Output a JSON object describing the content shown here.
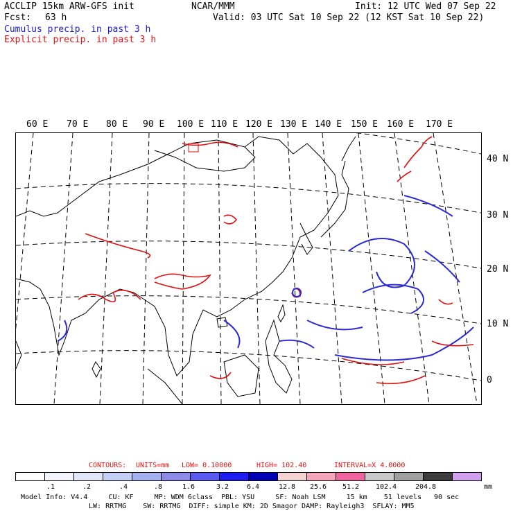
{
  "header": {
    "title_left": "ACCLIP 15km ARW-GFS init",
    "center": "NCAR/MMM",
    "init": "Init: 12 UTC Wed 07 Sep 22",
    "fcst_label": "Fcst:",
    "fcst_value": "63 h",
    "valid": "Valid: 03 UTC Sat 10 Sep 22 (12 KST Sat 10 Sep 22)",
    "legend_cumulus": "Cumulus precip. in past 3 h",
    "legend_explicit": "Explicit precip. in past 3 h"
  },
  "map": {
    "lon_labels": [
      "60 E",
      "70 E",
      "80 E",
      "90 E",
      "100 E",
      "110 E",
      "120 E",
      "130 E",
      "140 E",
      "150 E",
      "160 E",
      "170 E"
    ],
    "lat_labels": [
      "40 N",
      "30 N",
      "20 N",
      "10 N",
      "0"
    ],
    "colors": {
      "cumulus": "#2a2ad6",
      "explicit": "#e01010",
      "coast": "#000000"
    }
  },
  "contours": {
    "label": "CONTOURS:",
    "units": "UNITS=mm",
    "low": "LOW= 0.10000",
    "high": "HIGH= 102.40",
    "interval": "INTERVAL=X 4.0000"
  },
  "colorbar": {
    "colors": [
      "#ffffff",
      "#f4f4ff",
      "#e1e6fa",
      "#c4cff5",
      "#a5b0f0",
      "#8c8ce8",
      "#5a5af0",
      "#1e1ef0",
      "#0000b4",
      "#f5d2d2",
      "#f5a5bb",
      "#f064a0",
      "#c8c8c8",
      "#a0a0a0",
      "#3c3c3c",
      "#d2a0f0"
    ],
    "ticks": [
      ".1",
      ".2",
      ".4",
      ".8",
      "1.6",
      "3.2",
      "6.4",
      "12.8",
      "25.6",
      "51.2",
      "102.4",
      "204.8"
    ],
    "unit": "mm"
  },
  "model_info": {
    "line1": "Model Info: V4.4     CU: KF     MP: WDM 6class  PBL: YSU     SF: Noah LSM     15 km    51 levels   90 sec",
    "line2": "LW: RRTMG    SW: RRTMG  DIFF: simple KM: 2D Smagor DAMP: Rayleigh3  SFLAY: MM5"
  }
}
